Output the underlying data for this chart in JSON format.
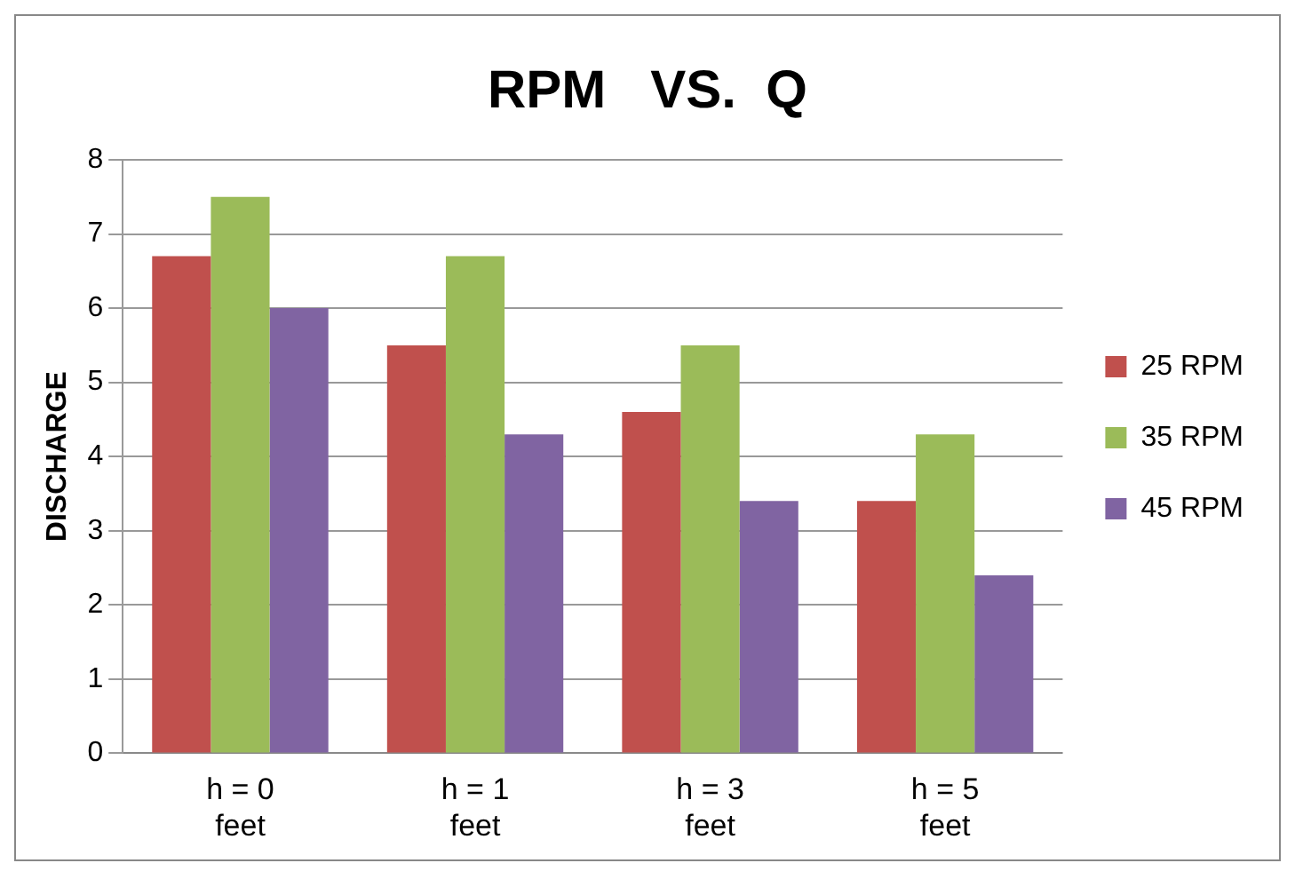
{
  "chart_data": {
    "type": "bar",
    "title": "RPM   VS.  Q",
    "ylabel": "DISCHARGE",
    "categories": [
      "h = 0 feet",
      "h = 1 feet",
      "h = 3 feet",
      "h = 5 feet"
    ],
    "series": [
      {
        "name": "25 RPM",
        "color": "#c0504d",
        "values": [
          6.7,
          5.5,
          4.6,
          3.4
        ]
      },
      {
        "name": "35 RPM",
        "color": "#9bbb59",
        "values": [
          7.5,
          6.7,
          5.5,
          4.3
        ]
      },
      {
        "name": "45 RPM",
        "color": "#8064a2",
        "values": [
          6.0,
          4.3,
          3.4,
          2.4
        ]
      }
    ],
    "ylim": [
      0,
      8
    ],
    "yticks": [
      0,
      1,
      2,
      3,
      4,
      5,
      6,
      7,
      8
    ],
    "grid": "y",
    "legend": "right"
  }
}
